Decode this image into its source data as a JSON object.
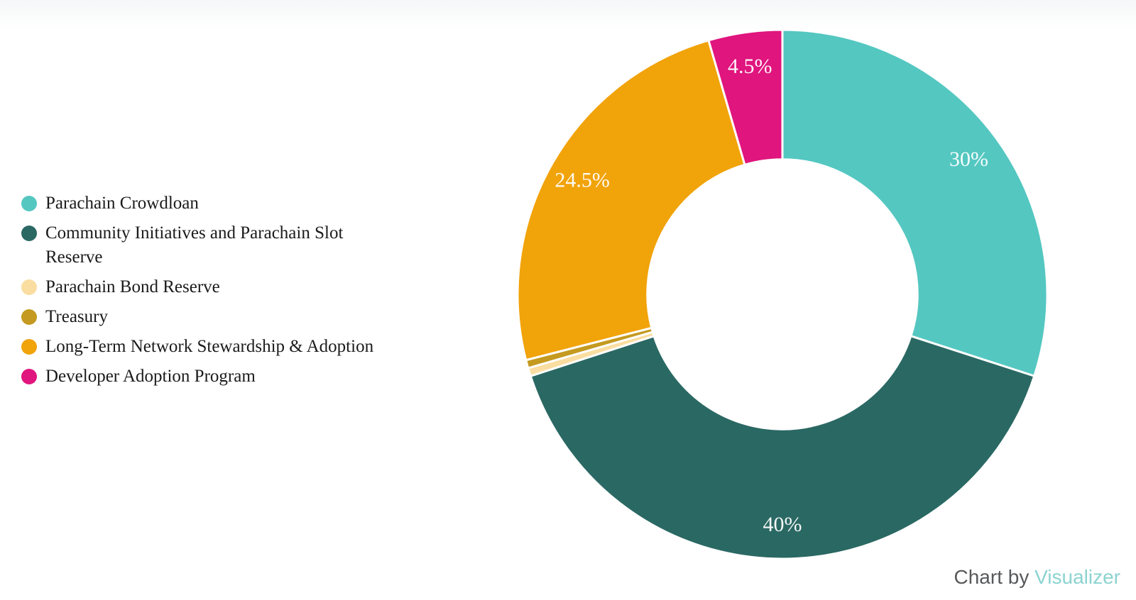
{
  "page": {
    "background": "#ffffff",
    "top_tint": "#f6f7f8"
  },
  "chart_data": {
    "type": "pie",
    "donut": true,
    "hole_ratio": 0.51,
    "start_angle_deg": 0,
    "direction": "clockwise",
    "legend_position": "left-middle",
    "title": "",
    "categories": [
      "Parachain Crowdloan",
      "Community Initiatives and Parachain Slot Reserve",
      "Parachain Bond Reserve",
      "Treasury",
      "Long-Term Network Stewardship & Adoption",
      "Developer Adoption Program"
    ],
    "values": [
      30,
      40,
      0.5,
      0.5,
      24.5,
      4.5
    ],
    "slice_labels": [
      "30%",
      "40%",
      "",
      "",
      "24.5%",
      "4.5%"
    ],
    "colors": [
      "#54C7C1",
      "#2A6863",
      "#FADDA0",
      "#C49A20",
      "#F1A30A",
      "#E0157E"
    ],
    "slice_label_color": "#ffffff",
    "slice_border_color": "#ffffff"
  },
  "attribution": {
    "prefix": "Chart by ",
    "brand": "Visualizer",
    "prefix_color": "#58595B",
    "brand_color": "#8BD3D0"
  }
}
